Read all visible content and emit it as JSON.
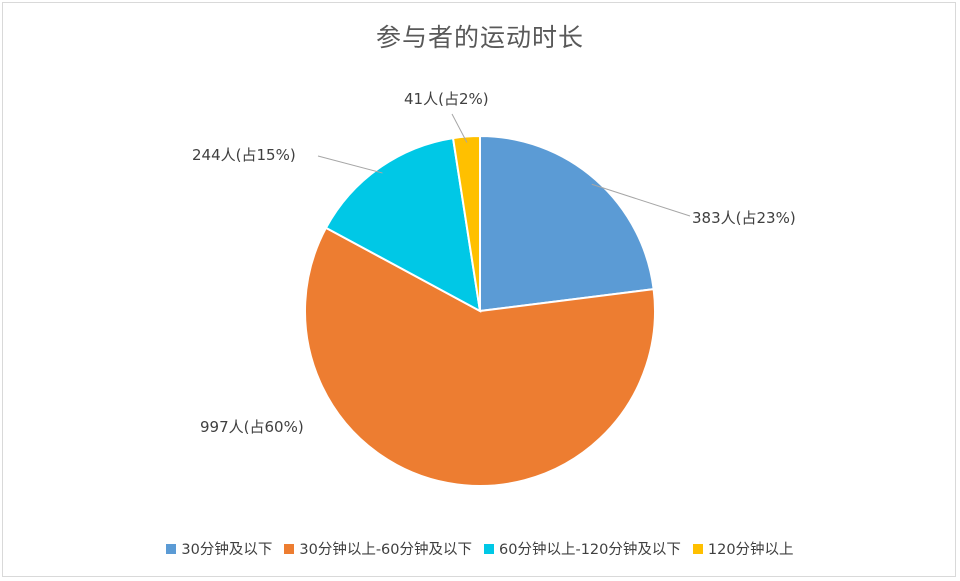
{
  "chart_data": {
    "type": "pie",
    "title": "参与者的运动时长",
    "categories": [
      "30分钟及以下",
      "30分钟以上-60分钟及以下",
      "60分钟以上-120分钟及以下",
      "120分钟以上"
    ],
    "values": [
      383,
      997,
      244,
      41
    ],
    "data_labels": [
      "383人(占23%)",
      "997人(占60%)",
      "244人(占15%)",
      "41人(占2%)"
    ],
    "colors": [
      "#5b9bd5",
      "#ed7d31",
      "#00c8e6",
      "#ffc000"
    ],
    "start_angle": "12 o'clock",
    "direction": "clockwise",
    "legend_position": "bottom"
  }
}
